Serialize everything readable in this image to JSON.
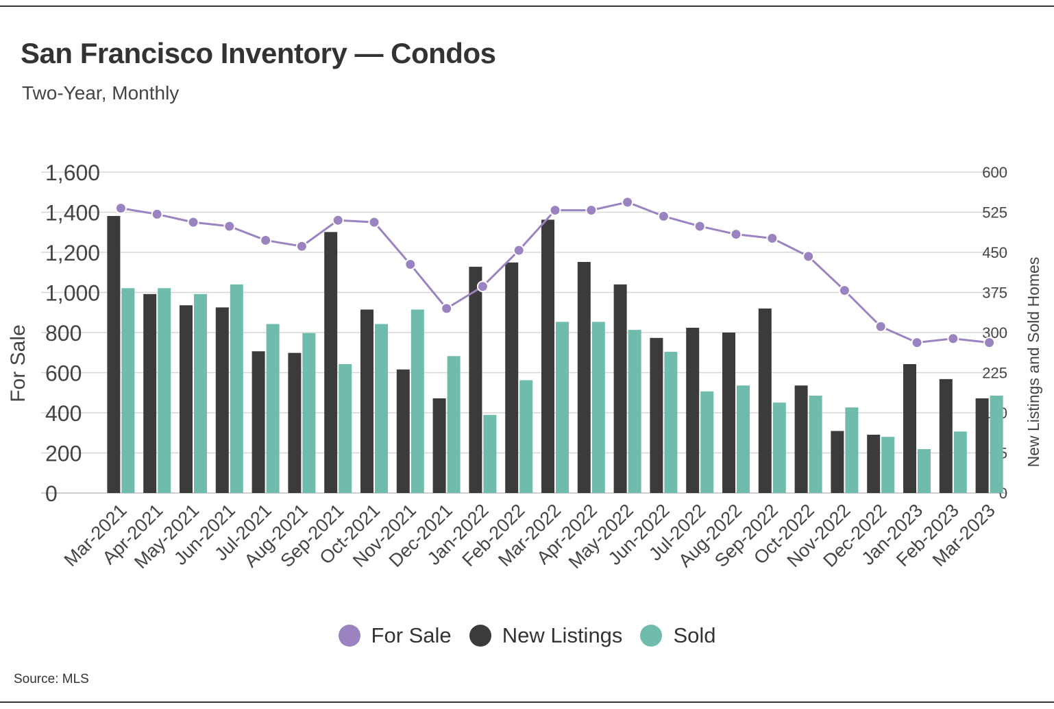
{
  "title": "San Francisco Inventory — Condos",
  "subtitle": "Two-Year, Monthly",
  "source": "Source:  MLS",
  "colors": {
    "for_sale": "#9b82c1",
    "new_listings": "#3b3b3b",
    "sold": "#6fbcad",
    "grid": "#d6d6d6",
    "axis_text": "#444444"
  },
  "legend": [
    {
      "label": "For Sale",
      "color": "#9b82c1"
    },
    {
      "label": "New Listings",
      "color": "#3b3b3b"
    },
    {
      "label": "Sold",
      "color": "#6fbcad"
    }
  ],
  "chart_data": {
    "type": "bar",
    "title": "San Francisco Inventory — Condos",
    "subtitle": "Two-Year, Monthly",
    "categories": [
      "Mar-2021",
      "Apr-2021",
      "May-2021",
      "Jun-2021",
      "Jul-2021",
      "Aug-2021",
      "Sep-2021",
      "Oct-2021",
      "Nov-2021",
      "Dec-2021",
      "Jan-2022",
      "Feb-2022",
      "Mar-2022",
      "Apr-2022",
      "May-2022",
      "Jun-2022",
      "Jul-2022",
      "Aug-2022",
      "Sep-2022",
      "Oct-2022",
      "Nov-2022",
      "Dec-2022",
      "Jan-2023",
      "Feb-2023",
      "Mar-2023"
    ],
    "ylabel": "For Sale",
    "ylabel_right": "New Listings and Sold Homes",
    "ylim": [
      0,
      1600
    ],
    "ylim_right": [
      0,
      600
    ],
    "yticks": [
      "0",
      "200",
      "400",
      "600",
      "800",
      "1,000",
      "1,200",
      "1,400",
      "1,600"
    ],
    "yticks_right": [
      "0",
      "75",
      "150",
      "225",
      "300",
      "375",
      "450",
      "525",
      "600"
    ],
    "grid": true,
    "legend_position": "bottom",
    "series": [
      {
        "name": "For Sale",
        "type": "line",
        "axis": "left",
        "values": [
          1420,
          1390,
          1350,
          1330,
          1260,
          1230,
          1360,
          1350,
          1140,
          920,
          1030,
          1210,
          1410,
          1410,
          1450,
          1380,
          1330,
          1290,
          1270,
          1180,
          1010,
          830,
          750,
          770,
          750
        ]
      },
      {
        "name": "New Listings",
        "type": "bar",
        "axis": "right",
        "values": [
          518,
          372,
          351,
          347,
          265,
          262,
          488,
          343,
          231,
          177,
          423,
          431,
          511,
          432,
          390,
          290,
          309,
          300,
          345,
          201,
          116,
          109,
          241,
          213,
          177
        ]
      },
      {
        "name": "Sold",
        "type": "bar",
        "axis": "right",
        "values": [
          383,
          383,
          372,
          390,
          316,
          299,
          241,
          316,
          343,
          256,
          146,
          211,
          320,
          320,
          305,
          264,
          190,
          201,
          169,
          182,
          160,
          105,
          82,
          115,
          182
        ]
      }
    ]
  }
}
